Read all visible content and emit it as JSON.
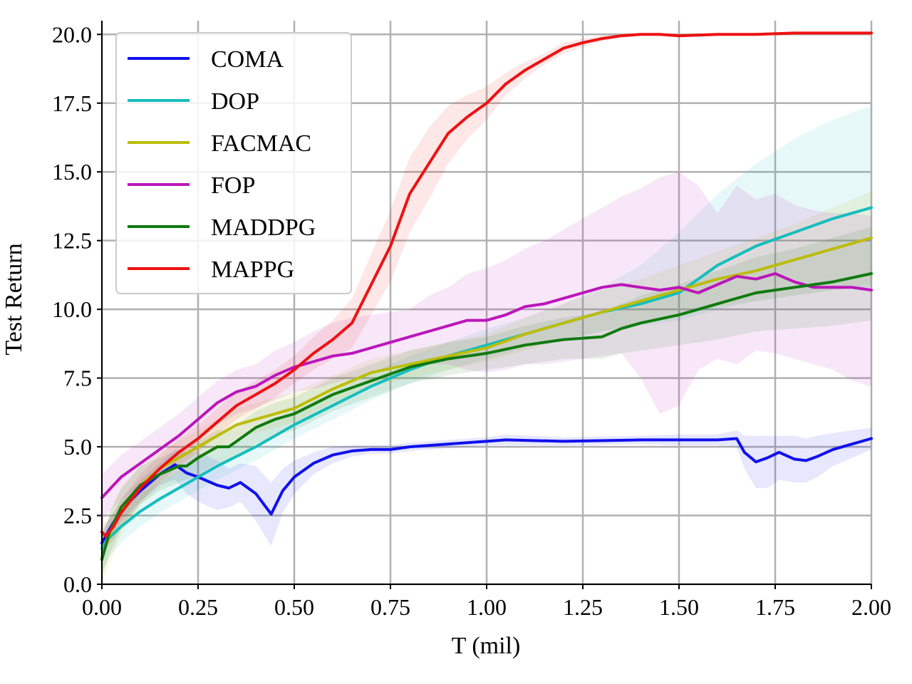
{
  "chart_data": {
    "type": "line",
    "title": "",
    "xlabel": "T (mil)",
    "ylabel": "Test Return",
    "xlim": [
      0,
      2.0
    ],
    "ylim": [
      0,
      20.5
    ],
    "xticks": [
      0.0,
      0.25,
      0.5,
      0.75,
      1.0,
      1.25,
      1.5,
      1.75,
      2.0
    ],
    "xtick_labels": [
      "0.00",
      "0.25",
      "0.50",
      "0.75",
      "1.00",
      "1.25",
      "1.50",
      "1.75",
      "2.00"
    ],
    "yticks": [
      0.0,
      2.5,
      5.0,
      7.5,
      10.0,
      12.5,
      15.0,
      17.5,
      20.0
    ],
    "ytick_labels": [
      "0.0",
      "2.5",
      "5.0",
      "7.5",
      "10.0",
      "12.5",
      "15.0",
      "17.5",
      "20.0"
    ],
    "grid": true,
    "legend_position": "top-left",
    "series": [
      {
        "name": "COMA",
        "color": "#1010ee",
        "x": [
          0,
          0.02,
          0.05,
          0.1,
          0.15,
          0.19,
          0.22,
          0.25,
          0.3,
          0.33,
          0.36,
          0.4,
          0.44,
          0.47,
          0.5,
          0.55,
          0.6,
          0.65,
          0.7,
          0.75,
          0.8,
          0.9,
          1.0,
          1.05,
          1.2,
          1.4,
          1.5,
          1.6,
          1.65,
          1.67,
          1.7,
          1.73,
          1.76,
          1.8,
          1.83,
          1.86,
          1.9,
          1.95,
          2.0
        ],
        "y": [
          1.5,
          2.0,
          2.7,
          3.4,
          4.0,
          4.35,
          4.05,
          3.9,
          3.6,
          3.5,
          3.7,
          3.3,
          2.55,
          3.4,
          3.9,
          4.4,
          4.7,
          4.85,
          4.9,
          4.9,
          5.0,
          5.1,
          5.2,
          5.25,
          5.2,
          5.25,
          5.25,
          5.25,
          5.3,
          4.8,
          4.45,
          4.6,
          4.8,
          4.55,
          4.5,
          4.65,
          4.9,
          5.1,
          5.3
        ],
        "lower": [
          1.2,
          1.6,
          2.3,
          3.0,
          3.6,
          3.8,
          3.3,
          3.0,
          2.7,
          2.8,
          3.0,
          2.3,
          1.4,
          2.6,
          3.3,
          4.0,
          4.4,
          4.65,
          4.75,
          4.75,
          4.85,
          4.95,
          5.05,
          5.05,
          5.05,
          5.1,
          5.05,
          5.05,
          5.0,
          4.2,
          3.5,
          3.5,
          3.8,
          3.7,
          3.7,
          3.9,
          4.3,
          4.6,
          4.9
        ],
        "upper": [
          1.8,
          2.4,
          3.1,
          3.8,
          4.4,
          4.9,
          4.8,
          4.8,
          4.5,
          4.2,
          4.4,
          4.3,
          3.7,
          4.2,
          4.5,
          4.8,
          5.0,
          5.05,
          5.05,
          5.05,
          5.15,
          5.25,
          5.35,
          5.45,
          5.35,
          5.4,
          5.45,
          5.45,
          5.6,
          5.4,
          5.4,
          5.4,
          5.4,
          5.4,
          5.3,
          5.4,
          5.5,
          5.6,
          5.7
        ]
      },
      {
        "name": "DOP",
        "color": "#17bdbd",
        "x": [
          0,
          0.02,
          0.05,
          0.1,
          0.15,
          0.2,
          0.25,
          0.3,
          0.4,
          0.5,
          0.6,
          0.7,
          0.8,
          0.9,
          1.0,
          1.1,
          1.2,
          1.3,
          1.4,
          1.5,
          1.6,
          1.7,
          1.8,
          1.9,
          2.0
        ],
        "y": [
          1.3,
          1.7,
          2.1,
          2.65,
          3.1,
          3.5,
          3.9,
          4.3,
          5.0,
          5.8,
          6.5,
          7.2,
          7.8,
          8.3,
          8.7,
          9.1,
          9.5,
          9.9,
          10.2,
          10.6,
          11.6,
          12.3,
          12.8,
          13.3,
          13.7
        ],
        "lower": [
          0.5,
          1.0,
          1.5,
          2.1,
          2.6,
          3.0,
          3.4,
          3.8,
          4.5,
          5.3,
          6.0,
          6.7,
          7.3,
          7.8,
          8.2,
          8.6,
          8.9,
          9.2,
          9.4,
          9.6,
          10.0,
          10.3,
          10.5,
          10.7,
          10.8
        ],
        "upper": [
          2.0,
          2.4,
          2.8,
          3.3,
          3.7,
          4.1,
          4.5,
          4.9,
          5.6,
          6.3,
          7.0,
          7.7,
          8.3,
          8.8,
          9.3,
          9.7,
          10.2,
          10.8,
          11.6,
          12.8,
          14.2,
          15.3,
          16.2,
          16.9,
          17.4
        ]
      },
      {
        "name": "FACMAC",
        "color": "#bcbc0c",
        "x": [
          0,
          0.02,
          0.05,
          0.1,
          0.15,
          0.2,
          0.25,
          0.3,
          0.35,
          0.4,
          0.45,
          0.5,
          0.6,
          0.7,
          0.8,
          0.9,
          1.0,
          1.1,
          1.2,
          1.3,
          1.4,
          1.5,
          1.6,
          1.7,
          1.8,
          1.9,
          2.0
        ],
        "y": [
          1.0,
          1.8,
          2.7,
          3.6,
          4.2,
          4.6,
          5.0,
          5.4,
          5.8,
          6.0,
          6.2,
          6.4,
          7.1,
          7.7,
          8.0,
          8.3,
          8.6,
          9.1,
          9.5,
          9.9,
          10.3,
          10.7,
          11.1,
          11.4,
          11.8,
          12.2,
          12.6
        ],
        "lower": [
          0.0,
          0.8,
          1.8,
          2.9,
          3.6,
          4.1,
          4.5,
          4.9,
          5.3,
          5.5,
          5.7,
          5.9,
          6.6,
          7.2,
          7.5,
          7.8,
          8.1,
          8.5,
          8.9,
          9.2,
          9.5,
          9.8,
          10.1,
          10.3,
          10.5,
          10.7,
          10.9
        ],
        "upper": [
          1.8,
          2.6,
          3.5,
          4.3,
          4.8,
          5.2,
          5.6,
          6.0,
          6.4,
          6.6,
          6.8,
          7.0,
          7.6,
          8.2,
          8.5,
          8.8,
          9.1,
          9.7,
          10.2,
          10.7,
          11.1,
          11.6,
          12.1,
          12.6,
          13.1,
          13.7,
          14.3
        ]
      },
      {
        "name": "FOP",
        "color": "#bb16bb",
        "x": [
          0,
          0.05,
          0.1,
          0.15,
          0.2,
          0.25,
          0.3,
          0.35,
          0.4,
          0.45,
          0.5,
          0.55,
          0.6,
          0.65,
          0.7,
          0.75,
          0.8,
          0.85,
          0.9,
          0.95,
          1.0,
          1.05,
          1.1,
          1.15,
          1.2,
          1.25,
          1.3,
          1.35,
          1.4,
          1.45,
          1.5,
          1.55,
          1.6,
          1.65,
          1.7,
          1.75,
          1.8,
          1.85,
          1.9,
          1.95,
          2.0
        ],
        "y": [
          3.15,
          3.9,
          4.4,
          4.9,
          5.4,
          6.0,
          6.6,
          7.0,
          7.2,
          7.6,
          7.9,
          8.1,
          8.3,
          8.4,
          8.6,
          8.8,
          9.0,
          9.2,
          9.4,
          9.6,
          9.6,
          9.8,
          10.1,
          10.2,
          10.4,
          10.6,
          10.8,
          10.9,
          10.8,
          10.7,
          10.8,
          10.6,
          10.9,
          11.2,
          11.1,
          11.3,
          11.0,
          10.8,
          10.8,
          10.8,
          10.7
        ],
        "lower": [
          2.3,
          3.1,
          3.6,
          4.1,
          4.6,
          5.2,
          5.8,
          6.2,
          6.4,
          6.7,
          7.0,
          7.1,
          7.3,
          7.5,
          7.7,
          7.9,
          8.0,
          8.0,
          8.0,
          7.8,
          7.7,
          7.8,
          8.0,
          8.0,
          8.1,
          8.2,
          8.3,
          8.4,
          7.5,
          6.2,
          6.5,
          7.8,
          8.2,
          8.0,
          8.5,
          8.4,
          8.2,
          8.0,
          7.8,
          7.4,
          7.2
        ],
        "upper": [
          4.0,
          4.7,
          5.2,
          5.7,
          6.2,
          6.8,
          7.4,
          7.8,
          8.0,
          8.5,
          8.8,
          9.2,
          9.5,
          9.7,
          9.8,
          9.9,
          10.0,
          10.5,
          10.8,
          11.3,
          11.5,
          11.8,
          12.2,
          12.5,
          12.9,
          13.3,
          13.7,
          14.1,
          14.4,
          14.8,
          15.0,
          14.5,
          13.5,
          14.5,
          14.0,
          14.2,
          13.8,
          13.6,
          13.5,
          13.5,
          13.4
        ]
      },
      {
        "name": "MADDPG",
        "color": "#107a10",
        "x": [
          0,
          0.02,
          0.05,
          0.1,
          0.15,
          0.2,
          0.22,
          0.25,
          0.3,
          0.33,
          0.36,
          0.4,
          0.45,
          0.5,
          0.6,
          0.7,
          0.8,
          0.9,
          1.0,
          1.1,
          1.2,
          1.3,
          1.35,
          1.4,
          1.5,
          1.6,
          1.7,
          1.8,
          1.9,
          2.0
        ],
        "y": [
          0.9,
          1.9,
          2.8,
          3.6,
          4.0,
          4.3,
          4.3,
          4.6,
          5.0,
          5.0,
          5.3,
          5.7,
          6.0,
          6.2,
          6.9,
          7.4,
          7.9,
          8.2,
          8.4,
          8.7,
          8.9,
          9.0,
          9.3,
          9.5,
          9.8,
          10.2,
          10.6,
          10.8,
          11.0,
          11.3
        ],
        "lower": [
          0.3,
          1.1,
          2.0,
          2.9,
          3.4,
          3.7,
          3.8,
          4.0,
          4.4,
          4.5,
          4.7,
          5.1,
          5.4,
          5.6,
          6.3,
          6.8,
          7.3,
          7.6,
          7.8,
          8.0,
          8.2,
          8.2,
          8.4,
          8.5,
          8.7,
          8.9,
          9.2,
          9.3,
          9.4,
          9.6
        ],
        "upper": [
          1.5,
          2.6,
          3.5,
          4.3,
          4.6,
          4.9,
          4.9,
          5.2,
          5.6,
          5.6,
          5.9,
          6.3,
          6.6,
          6.8,
          7.5,
          8.0,
          8.5,
          8.8,
          9.0,
          9.4,
          9.7,
          9.9,
          10.2,
          10.5,
          10.9,
          11.4,
          11.9,
          12.2,
          12.6,
          13.0
        ]
      },
      {
        "name": "MAPPG",
        "color": "#ee1111",
        "x": [
          0,
          0.01,
          0.03,
          0.05,
          0.1,
          0.15,
          0.2,
          0.25,
          0.3,
          0.35,
          0.4,
          0.45,
          0.5,
          0.55,
          0.6,
          0.65,
          0.7,
          0.75,
          0.8,
          0.85,
          0.9,
          0.95,
          1.0,
          1.05,
          1.1,
          1.15,
          1.2,
          1.25,
          1.3,
          1.35,
          1.4,
          1.45,
          1.5,
          1.6,
          1.7,
          1.8,
          1.9,
          2.0
        ],
        "y": [
          1.9,
          1.75,
          2.1,
          2.6,
          3.5,
          4.2,
          4.8,
          5.3,
          5.9,
          6.5,
          6.9,
          7.3,
          7.8,
          8.4,
          8.9,
          9.5,
          10.9,
          12.3,
          14.2,
          15.3,
          16.4,
          17.0,
          17.5,
          18.2,
          18.7,
          19.1,
          19.5,
          19.7,
          19.85,
          19.95,
          20.0,
          20.0,
          19.95,
          20.0,
          20.0,
          20.05,
          20.05,
          20.05
        ],
        "lower": [
          1.4,
          1.3,
          1.6,
          2.1,
          3.0,
          3.7,
          4.3,
          4.8,
          5.4,
          6.0,
          6.4,
          6.8,
          7.3,
          7.8,
          8.2,
          8.6,
          9.8,
          11.0,
          12.8,
          14.0,
          15.3,
          16.2,
          16.9,
          17.8,
          18.4,
          18.9,
          19.3,
          19.55,
          19.75,
          19.9,
          19.95,
          19.95,
          19.9,
          19.95,
          19.95,
          20.0,
          20.0,
          20.0
        ],
        "upper": [
          2.4,
          2.2,
          2.6,
          3.1,
          4.0,
          4.7,
          5.3,
          5.8,
          6.4,
          7.0,
          7.4,
          7.8,
          8.3,
          9.0,
          9.6,
          10.4,
          12.0,
          13.6,
          15.5,
          16.6,
          17.4,
          17.8,
          18.1,
          18.6,
          19.0,
          19.3,
          19.7,
          19.85,
          19.95,
          20.0,
          20.05,
          20.05,
          20.0,
          20.05,
          20.05,
          20.1,
          20.1,
          20.1
        ]
      }
    ]
  }
}
